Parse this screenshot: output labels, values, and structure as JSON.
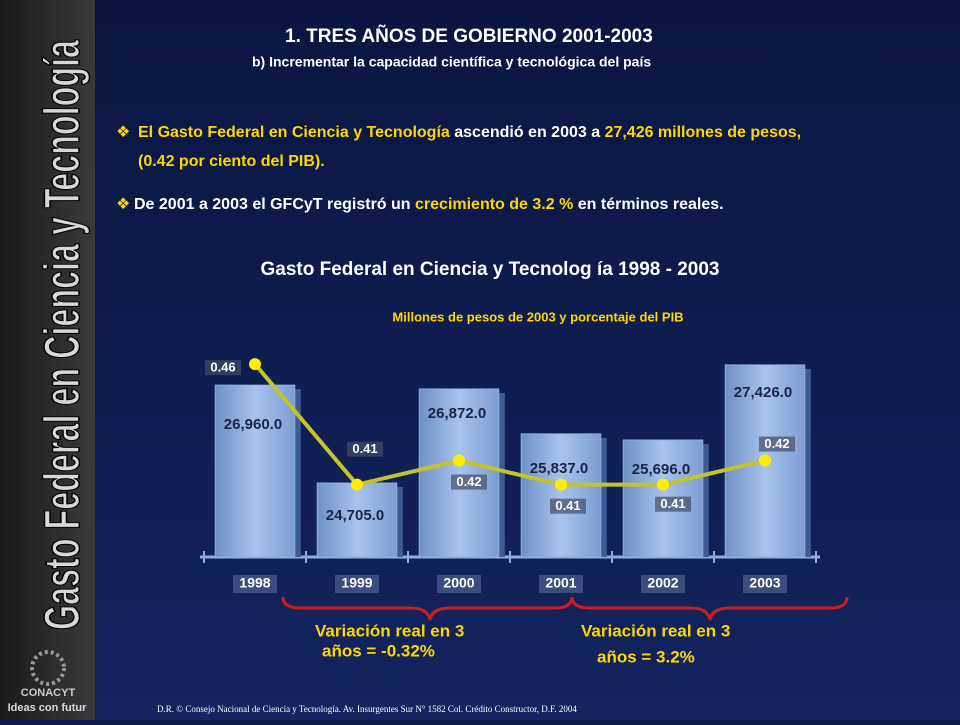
{
  "slide": {
    "heading": "1.   TRES AÑOS DE GOBIERNO 2001-2003",
    "subheading": "b) Incrementar la capacidad científica y tecnológica del país",
    "side_title": "Gasto Federal en Ciencia y Tecnología",
    "logo_name": "CONACYT",
    "logo_tagline": "Ideas con futur",
    "bullets": [
      [
        "El Gasto Federal en Ciencia y Tecnología",
        " ascendió en 2003 a ",
        "27,426 millones de pesos,",
        "",
        "(0.42 por ciento del PIB)."
      ],
      [
        "De 2001 a 2003 el GFCyT registró un ",
        "crecimiento de 3.2 %",
        " en términos reales."
      ]
    ],
    "braces": [
      [
        "Variación real en 3",
        "años = -0.32%"
      ],
      [
        "Variación real en 3",
        "años = 3.2%"
      ]
    ],
    "footer": "D.R. © Consejo Nacional de Ciencia y Tecnología. Av. Insurgentes Sur N° 1582 Col. Crédito Constructor, D.F.   2004"
  },
  "chart_data": {
    "type": "bar",
    "title": "Gasto Federal en Ciencia y Tecnolog ía 1998  - 2003",
    "subtitle": "Millones de pesos de 2003 y porcentaje del PIB",
    "categories": [
      "1998",
      "1999",
      "2000",
      "2001",
      "2002",
      "2003"
    ],
    "ylim": [
      23000,
      28000
    ],
    "y2lim": [
      0.38,
      0.47
    ],
    "series": [
      {
        "name": "Millones de pesos",
        "type": "bar",
        "color": "#8fb0dc",
        "values": [
          26960,
          24705,
          26872,
          25837,
          25696,
          27426
        ],
        "value_labels": [
          "26,960.0",
          "24,705.0",
          "26,872.0",
          "25,837.0",
          "25,696.0",
          "27,426.0"
        ]
      },
      {
        "name": "Porcentaje del PIB",
        "type": "line",
        "axis": "y2",
        "color": "#c4c42a",
        "values": [
          0.46,
          0.41,
          0.42,
          0.41,
          0.41,
          0.42
        ]
      }
    ]
  }
}
